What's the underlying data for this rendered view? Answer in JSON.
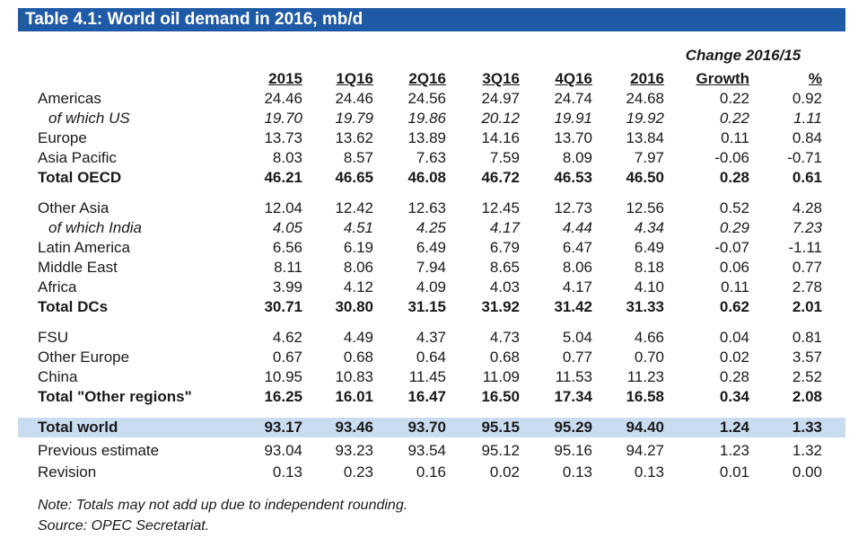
{
  "title": "Table 4.1: World oil demand in 2016, mb/d",
  "change_header": "Change 2016/15",
  "columns": [
    "2015",
    "1Q16",
    "2Q16",
    "3Q16",
    "4Q16",
    "2016",
    "Growth",
    "%"
  ],
  "rows": [
    {
      "label": "Americas",
      "values": [
        "24.46",
        "24.46",
        "24.56",
        "24.97",
        "24.74",
        "24.68",
        "0.22",
        "0.92"
      ]
    },
    {
      "label": "of which US",
      "values": [
        "19.70",
        "19.79",
        "19.86",
        "20.12",
        "19.91",
        "19.92",
        "0.22",
        "1.11"
      ]
    },
    {
      "label": "Europe",
      "values": [
        "13.73",
        "13.62",
        "13.89",
        "14.16",
        "13.70",
        "13.84",
        "0.11",
        "0.84"
      ]
    },
    {
      "label": "Asia Pacific",
      "values": [
        "8.03",
        "8.57",
        "7.63",
        "7.59",
        "8.09",
        "7.97",
        "-0.06",
        "-0.71"
      ]
    },
    {
      "label": "Total OECD",
      "values": [
        "46.21",
        "46.65",
        "46.08",
        "46.72",
        "46.53",
        "46.50",
        "0.28",
        "0.61"
      ]
    },
    {
      "label": "Other Asia",
      "values": [
        "12.04",
        "12.42",
        "12.63",
        "12.45",
        "12.73",
        "12.56",
        "0.52",
        "4.28"
      ]
    },
    {
      "label": "of which India",
      "values": [
        "4.05",
        "4.51",
        "4.25",
        "4.17",
        "4.44",
        "4.34",
        "0.29",
        "7.23"
      ]
    },
    {
      "label": "Latin America",
      "values": [
        "6.56",
        "6.19",
        "6.49",
        "6.79",
        "6.47",
        "6.49",
        "-0.07",
        "-1.11"
      ]
    },
    {
      "label": "Middle East",
      "values": [
        "8.11",
        "8.06",
        "7.94",
        "8.65",
        "8.06",
        "8.18",
        "0.06",
        "0.77"
      ]
    },
    {
      "label": "Africa",
      "values": [
        "3.99",
        "4.12",
        "4.09",
        "4.03",
        "4.17",
        "4.10",
        "0.11",
        "2.78"
      ]
    },
    {
      "label": "Total DCs",
      "values": [
        "30.71",
        "30.80",
        "31.15",
        "31.92",
        "31.42",
        "31.33",
        "0.62",
        "2.01"
      ]
    },
    {
      "label": "FSU",
      "values": [
        "4.62",
        "4.49",
        "4.37",
        "4.73",
        "5.04",
        "4.66",
        "0.04",
        "0.81"
      ]
    },
    {
      "label": "Other Europe",
      "values": [
        "0.67",
        "0.68",
        "0.64",
        "0.68",
        "0.77",
        "0.70",
        "0.02",
        "3.57"
      ]
    },
    {
      "label": "China",
      "values": [
        "10.95",
        "10.83",
        "11.45",
        "11.09",
        "11.53",
        "11.23",
        "0.28",
        "2.52"
      ]
    },
    {
      "label": "Total \"Other regions\"",
      "values": [
        "16.25",
        "16.01",
        "16.47",
        "16.50",
        "17.34",
        "16.58",
        "0.34",
        "2.08"
      ]
    },
    {
      "label": "Total world",
      "values": [
        "93.17",
        "93.46",
        "93.70",
        "95.15",
        "95.29",
        "94.40",
        "1.24",
        "1.33"
      ]
    },
    {
      "label": "Previous estimate",
      "values": [
        "93.04",
        "93.23",
        "93.54",
        "95.12",
        "95.16",
        "94.27",
        "1.23",
        "1.32"
      ]
    },
    {
      "label": "Revision",
      "values": [
        "0.13",
        "0.23",
        "0.16",
        "0.02",
        "0.13",
        "0.13",
        "0.01",
        "0.00"
      ]
    }
  ],
  "notes": {
    "note": "Note: Totals may not add up due to independent rounding.",
    "source": "Source: OPEC Secretariat."
  },
  "colors": {
    "title_bar": "#1f5aa6",
    "highlight": "#c9dcf0"
  }
}
